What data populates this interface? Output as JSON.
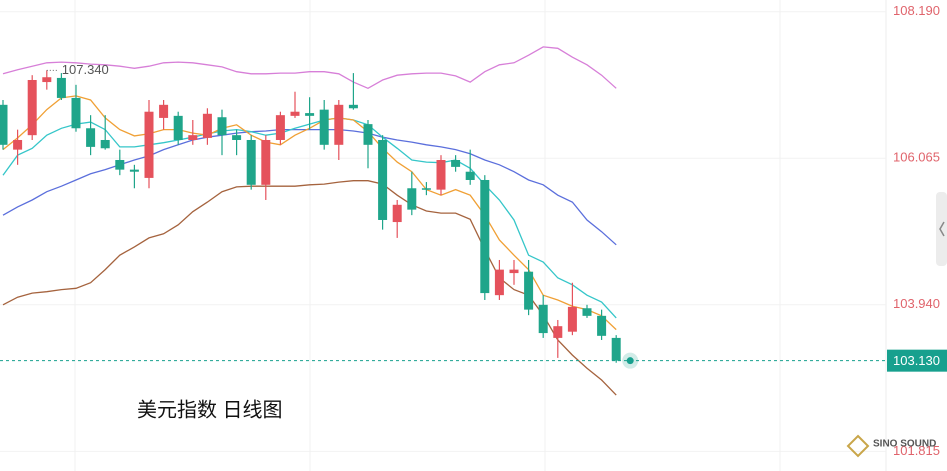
{
  "chart_data": {
    "type": "candlestick",
    "title": "美元指数 日线图",
    "watermark": "SINO SOUND",
    "up_color": "#e5525c",
    "down_color": "#1fa58a",
    "ylim": [
      101.53,
      108.36
    ],
    "yticks": [
      {
        "value": 108.19,
        "label": "108.190"
      },
      106.065,
      {
        "value": 103.94,
        "label": "103.940"
      },
      101.815
    ],
    "grid": true,
    "last_price": {
      "value": 103.13,
      "label": "103.130",
      "color": "#17a08e"
    },
    "high_label": {
      "value": 107.34,
      "label": "107.340"
    },
    "open": [
      106.84,
      106.19,
      106.4,
      107.17,
      107.23,
      106.94,
      106.5,
      106.33,
      106.04,
      105.9,
      105.78,
      106.65,
      106.68,
      106.33,
      106.36,
      106.66,
      106.4,
      106.33,
      105.68,
      106.33,
      106.68,
      106.72,
      106.77,
      106.26,
      106.84,
      106.56,
      106.33,
      105.14,
      105.63,
      105.63,
      105.61,
      106.04,
      105.87,
      105.75,
      104.08,
      104.4,
      104.42,
      103.94,
      103.46,
      103.55,
      103.89,
      103.78,
      103.46
    ],
    "high": [
      106.91,
      106.48,
      107.27,
      107.34,
      107.3,
      107.13,
      106.69,
      106.69,
      106.19,
      105.97,
      106.91,
      106.91,
      106.74,
      106.62,
      106.79,
      106.77,
      106.48,
      106.4,
      106.4,
      106.74,
      107.03,
      106.95,
      106.91,
      106.91,
      107.3,
      106.62,
      106.4,
      105.46,
      105.87,
      105.72,
      106.11,
      106.11,
      106.19,
      105.82,
      104.59,
      104.59,
      104.59,
      104.08,
      103.72,
      104.26,
      103.94,
      103.87,
      103.5
    ],
    "low": [
      106.19,
      105.97,
      106.33,
      107.06,
      106.91,
      106.45,
      106.11,
      106.19,
      105.82,
      105.63,
      105.63,
      106.48,
      106.26,
      106.26,
      106.26,
      106.11,
      106.11,
      105.61,
      105.46,
      106.26,
      106.65,
      106.48,
      106.19,
      106.04,
      106.77,
      105.92,
      105.03,
      104.91,
      105.24,
      105.53,
      105.53,
      105.87,
      105.68,
      104.01,
      104.01,
      104.23,
      103.79,
      103.46,
      103.17,
      103.5,
      103.75,
      103.43,
      103.1
    ],
    "close": [
      106.26,
      106.33,
      107.2,
      107.24,
      106.94,
      106.5,
      106.23,
      106.21,
      105.9,
      105.87,
      106.74,
      106.84,
      106.33,
      106.4,
      106.71,
      106.4,
      106.33,
      105.68,
      106.33,
      106.69,
      106.74,
      106.68,
      106.26,
      106.84,
      106.79,
      106.26,
      105.17,
      105.39,
      105.32,
      105.61,
      106.04,
      105.94,
      105.75,
      104.11,
      104.45,
      104.45,
      103.87,
      103.53,
      103.63,
      103.91,
      103.78,
      103.49,
      103.13
    ],
    "lines": [
      {
        "color": "#d77fd8",
        "values": [
          107.29,
          107.35,
          107.4,
          107.45,
          107.46,
          107.45,
          107.43,
          107.42,
          107.4,
          107.37,
          107.4,
          107.45,
          107.46,
          107.45,
          107.42,
          107.39,
          107.32,
          107.29,
          107.29,
          107.3,
          107.3,
          107.32,
          107.32,
          107.29,
          107.17,
          107.08,
          107.2,
          107.27,
          107.29,
          107.3,
          107.3,
          107.26,
          107.17,
          107.32,
          107.42,
          107.45,
          107.56,
          107.68,
          107.66,
          107.53,
          107.42,
          107.27,
          107.08
        ]
      },
      {
        "color": "#a5633e",
        "values": [
          103.94,
          104.05,
          104.11,
          104.13,
          104.16,
          104.18,
          104.26,
          104.45,
          104.66,
          104.78,
          104.91,
          104.97,
          105.1,
          105.29,
          105.43,
          105.58,
          105.65,
          105.66,
          105.66,
          105.66,
          105.66,
          105.68,
          105.69,
          105.72,
          105.74,
          105.74,
          105.69,
          105.53,
          105.39,
          105.3,
          105.27,
          105.27,
          105.18,
          104.74,
          104.33,
          104.16,
          104.08,
          103.79,
          103.43,
          103.21,
          103.02,
          102.85,
          102.63
        ]
      },
      {
        "color": "#5b6fdc",
        "values": [
          105.24,
          105.36,
          105.46,
          105.58,
          105.66,
          105.75,
          105.84,
          105.9,
          105.97,
          106.04,
          106.1,
          106.19,
          106.26,
          106.33,
          106.37,
          106.4,
          106.43,
          106.45,
          106.46,
          106.48,
          106.48,
          106.48,
          106.48,
          106.48,
          106.46,
          106.43,
          106.37,
          106.33,
          106.3,
          106.26,
          106.23,
          106.19,
          106.13,
          106.04,
          105.97,
          105.87,
          105.75,
          105.68,
          105.53,
          105.43,
          105.17,
          105.0,
          104.81
        ]
      },
      {
        "color": "#35c6c9",
        "values": [
          105.82,
          106.11,
          106.21,
          106.4,
          106.5,
          106.56,
          106.59,
          106.48,
          106.23,
          106.23,
          106.26,
          106.29,
          106.33,
          106.37,
          106.42,
          106.46,
          106.48,
          106.45,
          106.4,
          106.43,
          106.5,
          106.56,
          106.62,
          106.65,
          106.62,
          106.55,
          106.37,
          106.21,
          106.04,
          106.01,
          106.0,
          106.04,
          105.92,
          105.68,
          105.46,
          105.17,
          104.66,
          104.56,
          104.33,
          104.23,
          104.08,
          103.98,
          103.75
        ]
      },
      {
        "color": "#f0a035",
        "values": [
          106.19,
          106.36,
          106.55,
          106.77,
          106.94,
          106.97,
          106.91,
          106.65,
          106.48,
          106.39,
          106.42,
          106.48,
          106.48,
          106.43,
          106.4,
          106.5,
          106.55,
          106.4,
          106.3,
          106.26,
          106.4,
          106.5,
          106.62,
          106.65,
          106.62,
          106.45,
          106.21,
          106.01,
          105.87,
          105.61,
          105.53,
          105.61,
          105.53,
          105.24,
          104.88,
          104.66,
          104.45,
          104.08,
          104.01,
          103.92,
          103.87,
          103.78,
          103.58
        ]
      }
    ]
  }
}
